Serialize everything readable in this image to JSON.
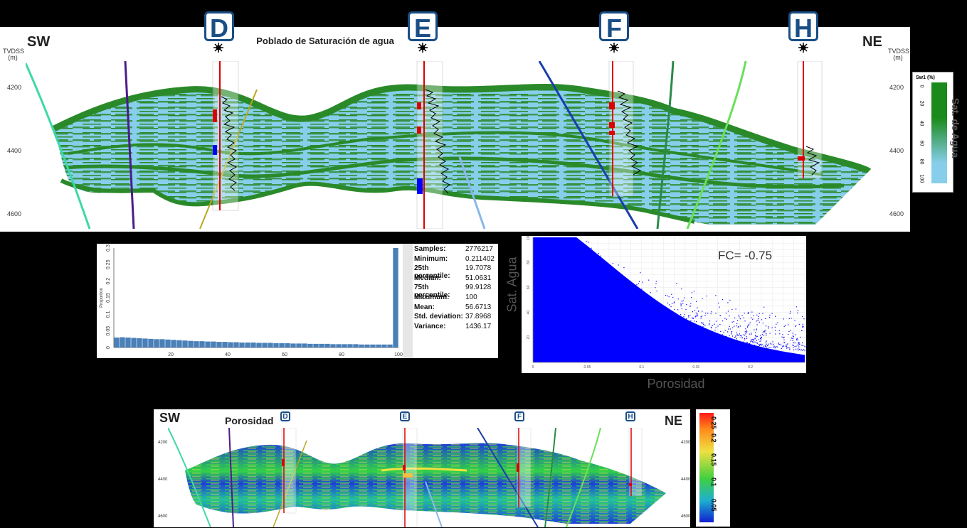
{
  "section_top": {
    "left_dir": "SW",
    "right_dir": "NE",
    "title": "Poblado de Saturación de agua",
    "depth_label_left": "TVDSS\n(m)",
    "depth_label_right": "TVDSS\n(m)",
    "depth_ticks": [
      "4200",
      "4400",
      "4600"
    ],
    "wells": [
      "D",
      "E",
      "F",
      "H"
    ],
    "colors": {
      "high": "#2a8a2a",
      "low": "#87ceeb"
    }
  },
  "legend_sw": {
    "title": "Sw1 (%)",
    "ticks": [
      "0",
      "20",
      "40",
      "60",
      "80",
      "100"
    ],
    "caption": "Sat. de Agua"
  },
  "histogram": {
    "chart_data": {
      "type": "bar",
      "ylabel": "Proportion",
      "ylim": [
        0,
        0.3
      ],
      "xlim": [
        0,
        100
      ],
      "y_ticks": [
        "0",
        "0.05",
        "0.1",
        "0.15",
        "0.2",
        "0.25",
        "0.3"
      ],
      "x_ticks": [
        "20",
        "40",
        "60",
        "80",
        "100"
      ],
      "bin_width": 2,
      "x": [
        2,
        4,
        6,
        8,
        10,
        12,
        14,
        16,
        18,
        20,
        22,
        24,
        26,
        28,
        30,
        32,
        34,
        36,
        38,
        40,
        42,
        44,
        46,
        48,
        50,
        52,
        54,
        56,
        58,
        60,
        62,
        64,
        66,
        68,
        70,
        72,
        74,
        76,
        78,
        80,
        82,
        84,
        86,
        88,
        90,
        92,
        94,
        96,
        98,
        100
      ],
      "values": [
        0.03,
        0.031,
        0.03,
        0.029,
        0.028,
        0.027,
        0.026,
        0.025,
        0.025,
        0.024,
        0.023,
        0.022,
        0.021,
        0.02,
        0.019,
        0.019,
        0.018,
        0.018,
        0.017,
        0.017,
        0.016,
        0.016,
        0.015,
        0.015,
        0.015,
        0.014,
        0.014,
        0.014,
        0.013,
        0.013,
        0.013,
        0.012,
        0.012,
        0.012,
        0.011,
        0.011,
        0.011,
        0.011,
        0.01,
        0.01,
        0.01,
        0.01,
        0.01,
        0.009,
        0.009,
        0.009,
        0.009,
        0.009,
        0.009,
        0.3
      ]
    },
    "stats": [
      {
        "k": "Samples:",
        "v": "2776217"
      },
      {
        "k": "Minimum:",
        "v": "0.211402"
      },
      {
        "k": "25th percentile:",
        "v": "19.7078"
      },
      {
        "k": "Median:",
        "v": "51.0631"
      },
      {
        "k": "75th percentile:",
        "v": "99.9128"
      },
      {
        "k": "Maximum:",
        "v": "100"
      },
      {
        "k": "Mean:",
        "v": "56.6713"
      },
      {
        "k": "Std. deviation:",
        "v": "37.8968"
      },
      {
        "k": "Variance:",
        "v": "1436.17"
      }
    ]
  },
  "scatter": {
    "chart_data": {
      "type": "scatter",
      "xlabel": "Porosidad",
      "ylabel": "Sat. Agua",
      "xlim": [
        0,
        0.25
      ],
      "ylim": [
        0,
        100
      ],
      "x_ticks": [
        "0",
        "0.05",
        "0.1",
        "0.15",
        "0.2"
      ],
      "y_ticks": [
        "20",
        "40",
        "60",
        "80",
        "100"
      ],
      "annotation": "FC= -0.75",
      "color": "#0000ff"
    }
  },
  "section_bottom": {
    "left_dir": "SW",
    "right_dir": "NE",
    "title": "Porosidad",
    "wells": [
      "D",
      "E",
      "F",
      "H"
    ],
    "depth_ticks": [
      "4200",
      "4400",
      "4600"
    ]
  },
  "legend_phi": {
    "ticks": [
      "0.25",
      "0.2",
      "0.15",
      "0.1",
      "0.05"
    ]
  }
}
